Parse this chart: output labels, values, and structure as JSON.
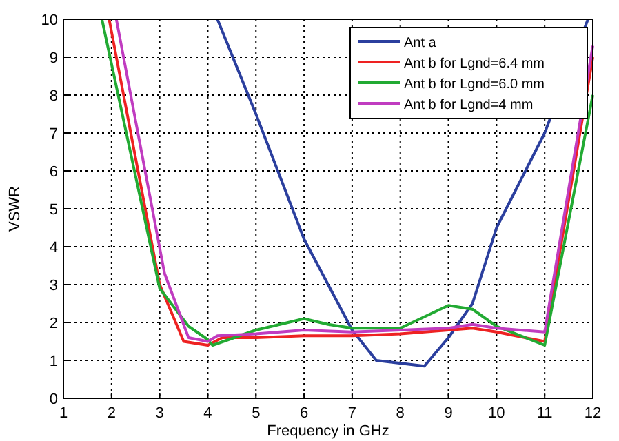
{
  "chart_data": {
    "type": "line",
    "xlabel": "Frequency in GHz",
    "ylabel": "VSWR",
    "xlim": [
      1,
      12
    ],
    "ylim": [
      0,
      10
    ],
    "xticks": [
      1,
      2,
      3,
      4,
      5,
      6,
      7,
      8,
      9,
      10,
      11,
      12
    ],
    "yticks": [
      0,
      1,
      2,
      3,
      4,
      5,
      6,
      7,
      8,
      9,
      10
    ],
    "grid": true,
    "legend": "top right",
    "line_style": "solid",
    "marker": "none",
    "series": [
      {
        "name": "Ant a",
        "color": "#2b3f9e",
        "x": [
          4.2,
          5,
          6,
          6.5,
          7,
          7.5,
          8.5,
          9,
          9.5,
          10,
          11,
          11.9
        ],
        "values": [
          10,
          7.5,
          4.2,
          3,
          1.8,
          1,
          0.85,
          1.6,
          2.5,
          4.5,
          7,
          10
        ]
      },
      {
        "name": "Ant b for Lgnd=6.4 mm",
        "color": "#ee2222",
        "x": [
          1.95,
          3,
          3.5,
          4,
          4.3,
          5,
          6,
          7,
          8,
          9,
          9.5,
          10,
          11,
          12
        ],
        "values": [
          10,
          3,
          1.5,
          1.4,
          1.6,
          1.6,
          1.65,
          1.65,
          1.7,
          1.8,
          1.85,
          1.75,
          1.5,
          9
        ]
      },
      {
        "name": "Ant b for Lgnd=6.0 mm",
        "color": "#22aa33",
        "x": [
          1.8,
          3,
          3.6,
          4,
          4.1,
          5,
          6,
          6.5,
          7,
          8,
          9,
          9.5,
          10,
          11,
          12
        ],
        "values": [
          10,
          2.9,
          1.9,
          1.55,
          1.4,
          1.8,
          2.1,
          1.95,
          1.85,
          1.85,
          2.45,
          2.35,
          1.9,
          1.4,
          8
        ]
      },
      {
        "name": "Ant b for Lgnd=4 mm",
        "color": "#c03cc0",
        "x": [
          2.1,
          3.1,
          3.6,
          4,
          4.2,
          5,
          6,
          7,
          8,
          9,
          9.5,
          10,
          11,
          12
        ],
        "values": [
          10,
          3.3,
          1.6,
          1.5,
          1.65,
          1.7,
          1.8,
          1.75,
          1.8,
          1.85,
          1.95,
          1.85,
          1.75,
          9.3
        ]
      }
    ]
  }
}
